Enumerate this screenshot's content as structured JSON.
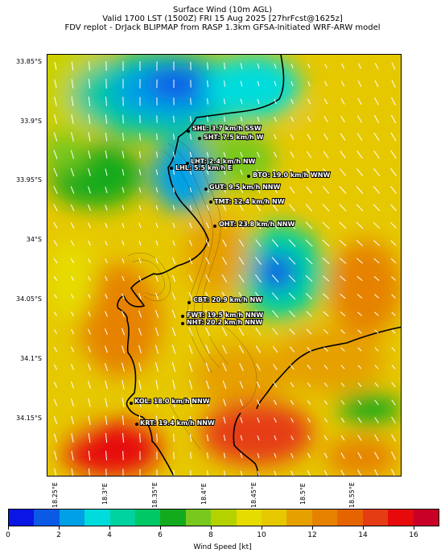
{
  "title_lines": [
    "Surface Wind (10m AGL)",
    "Valid 1700 LST (1500Z) FRI 15 Aug 2025 [27hrFcst@1625z]",
    "FDV replot - DrJack BLIPMAP from RASP 1.3km GFSA-Initiated WRF-ARW model"
  ],
  "lat_labels": [
    "33.85°S",
    "33.9°S",
    "33.95°S",
    "34°S",
    "34.05°S",
    "34.1°S",
    "34.15°S"
  ],
  "lon_labels": [
    "18.25°E",
    "18.3°E",
    "18.35°E",
    "18.4°E",
    "18.45°E",
    "18.5°E",
    "18.55°E"
  ],
  "stations": [
    {
      "code": "SHL",
      "label": "SHL: 3.7 km/h SSW"
    },
    {
      "code": "SHT",
      "label": "SHT: 7.5 km/h W"
    },
    {
      "code": "LHT",
      "label": "LHT: 2.4 km/h NW"
    },
    {
      "code": "LHL",
      "label": "LHL: 5.5 km/h E"
    },
    {
      "code": "BTO",
      "label": "BTO: 19.0 km/h WNW"
    },
    {
      "code": "GUT",
      "label": "GUT: 9.5 km/h NNW"
    },
    {
      "code": "TMT",
      "label": "TMT: 12.4 km/h NW"
    },
    {
      "code": "OHT",
      "label": "OHT: 23.8 km/h NNW"
    },
    {
      "code": "CBT",
      "label": "CBT: 20.9 km/h NW"
    },
    {
      "code": "FWT",
      "label": "FWT: 19.5 km/h NNW"
    },
    {
      "code": "NHT",
      "label": "NHT: 20.2 km/h NNW"
    },
    {
      "code": "KOL",
      "label": "KOL: 18.0 km/h NNW"
    },
    {
      "code": "KRT",
      "label": "KRT: 19.4 km/h NNW"
    }
  ],
  "colorbar": {
    "label": "Wind Speed [kt]",
    "ticks": [
      "0",
      "2",
      "4",
      "6",
      "8",
      "10",
      "12",
      "14",
      "16"
    ],
    "range": [
      0,
      17
    ],
    "colors": [
      "#0a16e6",
      "#0a5ae6",
      "#00a0e6",
      "#00dcdc",
      "#00d2a0",
      "#00c864",
      "#14aa1e",
      "#78c81e",
      "#b4d200",
      "#e6dc00",
      "#e6c800",
      "#e6a000",
      "#e68200",
      "#e66400",
      "#e63c14",
      "#e60a0a",
      "#c80028"
    ]
  }
}
